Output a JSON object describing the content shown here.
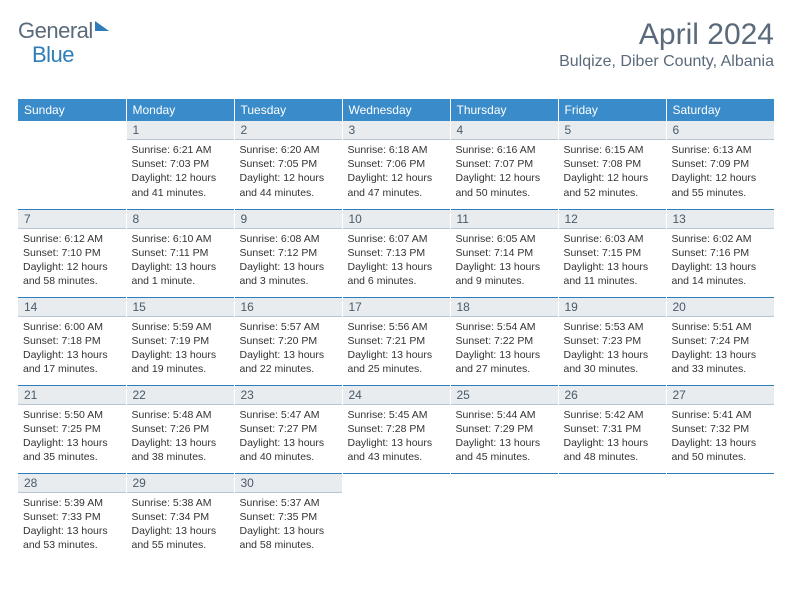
{
  "brand": {
    "part1": "General",
    "part2": "Blue"
  },
  "title": "April 2024",
  "location": "Bulqize, Diber County, Albania",
  "colors": {
    "header_bg": "#3a8bc9",
    "daynum_bg": "#e8ecef",
    "text_muted": "#5a6a7a",
    "accent": "#2f7db8"
  },
  "weekdays": [
    "Sunday",
    "Monday",
    "Tuesday",
    "Wednesday",
    "Thursday",
    "Friday",
    "Saturday"
  ],
  "weeks": [
    [
      null,
      {
        "n": "1",
        "sr": "6:21 AM",
        "ss": "7:03 PM",
        "dl": "12 hours and 41 minutes."
      },
      {
        "n": "2",
        "sr": "6:20 AM",
        "ss": "7:05 PM",
        "dl": "12 hours and 44 minutes."
      },
      {
        "n": "3",
        "sr": "6:18 AM",
        "ss": "7:06 PM",
        "dl": "12 hours and 47 minutes."
      },
      {
        "n": "4",
        "sr": "6:16 AM",
        "ss": "7:07 PM",
        "dl": "12 hours and 50 minutes."
      },
      {
        "n": "5",
        "sr": "6:15 AM",
        "ss": "7:08 PM",
        "dl": "12 hours and 52 minutes."
      },
      {
        "n": "6",
        "sr": "6:13 AM",
        "ss": "7:09 PM",
        "dl": "12 hours and 55 minutes."
      }
    ],
    [
      {
        "n": "7",
        "sr": "6:12 AM",
        "ss": "7:10 PM",
        "dl": "12 hours and 58 minutes."
      },
      {
        "n": "8",
        "sr": "6:10 AM",
        "ss": "7:11 PM",
        "dl": "13 hours and 1 minute."
      },
      {
        "n": "9",
        "sr": "6:08 AM",
        "ss": "7:12 PM",
        "dl": "13 hours and 3 minutes."
      },
      {
        "n": "10",
        "sr": "6:07 AM",
        "ss": "7:13 PM",
        "dl": "13 hours and 6 minutes."
      },
      {
        "n": "11",
        "sr": "6:05 AM",
        "ss": "7:14 PM",
        "dl": "13 hours and 9 minutes."
      },
      {
        "n": "12",
        "sr": "6:03 AM",
        "ss": "7:15 PM",
        "dl": "13 hours and 11 minutes."
      },
      {
        "n": "13",
        "sr": "6:02 AM",
        "ss": "7:16 PM",
        "dl": "13 hours and 14 minutes."
      }
    ],
    [
      {
        "n": "14",
        "sr": "6:00 AM",
        "ss": "7:18 PM",
        "dl": "13 hours and 17 minutes."
      },
      {
        "n": "15",
        "sr": "5:59 AM",
        "ss": "7:19 PM",
        "dl": "13 hours and 19 minutes."
      },
      {
        "n": "16",
        "sr": "5:57 AM",
        "ss": "7:20 PM",
        "dl": "13 hours and 22 minutes."
      },
      {
        "n": "17",
        "sr": "5:56 AM",
        "ss": "7:21 PM",
        "dl": "13 hours and 25 minutes."
      },
      {
        "n": "18",
        "sr": "5:54 AM",
        "ss": "7:22 PM",
        "dl": "13 hours and 27 minutes."
      },
      {
        "n": "19",
        "sr": "5:53 AM",
        "ss": "7:23 PM",
        "dl": "13 hours and 30 minutes."
      },
      {
        "n": "20",
        "sr": "5:51 AM",
        "ss": "7:24 PM",
        "dl": "13 hours and 33 minutes."
      }
    ],
    [
      {
        "n": "21",
        "sr": "5:50 AM",
        "ss": "7:25 PM",
        "dl": "13 hours and 35 minutes."
      },
      {
        "n": "22",
        "sr": "5:48 AM",
        "ss": "7:26 PM",
        "dl": "13 hours and 38 minutes."
      },
      {
        "n": "23",
        "sr": "5:47 AM",
        "ss": "7:27 PM",
        "dl": "13 hours and 40 minutes."
      },
      {
        "n": "24",
        "sr": "5:45 AM",
        "ss": "7:28 PM",
        "dl": "13 hours and 43 minutes."
      },
      {
        "n": "25",
        "sr": "5:44 AM",
        "ss": "7:29 PM",
        "dl": "13 hours and 45 minutes."
      },
      {
        "n": "26",
        "sr": "5:42 AM",
        "ss": "7:31 PM",
        "dl": "13 hours and 48 minutes."
      },
      {
        "n": "27",
        "sr": "5:41 AM",
        "ss": "7:32 PM",
        "dl": "13 hours and 50 minutes."
      }
    ],
    [
      {
        "n": "28",
        "sr": "5:39 AM",
        "ss": "7:33 PM",
        "dl": "13 hours and 53 minutes."
      },
      {
        "n": "29",
        "sr": "5:38 AM",
        "ss": "7:34 PM",
        "dl": "13 hours and 55 minutes."
      },
      {
        "n": "30",
        "sr": "5:37 AM",
        "ss": "7:35 PM",
        "dl": "13 hours and 58 minutes."
      },
      null,
      null,
      null,
      null
    ]
  ],
  "labels": {
    "sunrise": "Sunrise:",
    "sunset": "Sunset:",
    "daylight": "Daylight:"
  }
}
